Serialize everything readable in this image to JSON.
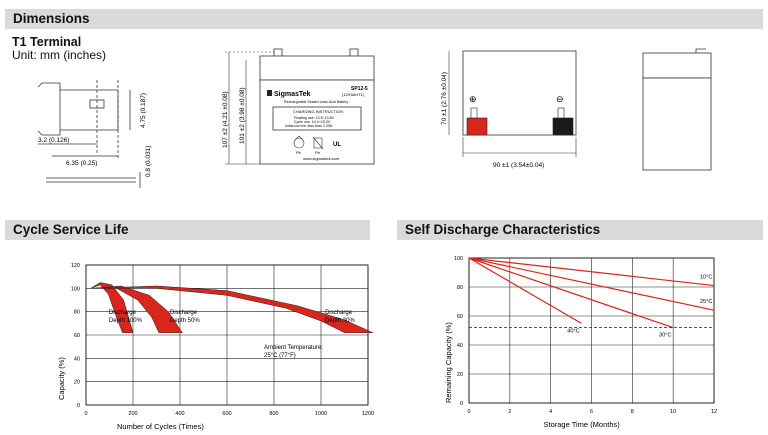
{
  "dimensions": {
    "title": "Dimensions",
    "terminal_title": "T1 Terminal",
    "unit": "Unit: mm (inches)",
    "terminal": {
      "d1": "3.2 (0.126)",
      "d2": "6.35 (0.25)",
      "d3": "4.75 (0.187)",
      "d4": "0.8 (0.031)"
    },
    "front": {
      "h_total": "107 ±2 (4.21 ±0.08)",
      "h_case": "101 ±2 (3.98 ±0.08)",
      "brand": "SigmasTek",
      "model": "SP12-5",
      "model_sub": "(12V5AHT1)",
      "subtitle": "Rechargeable Sealed Lead-Acid Battery",
      "charging_title": "CHARGING INSTRUCTION",
      "charging_1": "Floating use: 13.5~13.8V",
      "charging_2": "Cycle use: 14.4~15.0V",
      "charging_3": "Initial current: less than 2.25A",
      "cert_1": "Pb",
      "cert_2": "UL",
      "website": "www.sigmastek.com"
    },
    "side": {
      "h": "70 ±1 (2.76 ±0.04)",
      "w": "90 ±1 (3.54±0.04)",
      "pos": "⊕",
      "neg": "⊖"
    },
    "colors": {
      "positive": "#d9261c",
      "negative": "#1a1a1a"
    }
  },
  "cycle": {
    "title": "Cycle Service Life",
    "chart_data": {
      "type": "line",
      "xlabel": "Number of Cycles (Times)",
      "ylabel": "Capacity (%)",
      "xlim": [
        0,
        1200
      ],
      "ylim": [
        0,
        120
      ],
      "xticks": [
        0,
        200,
        400,
        600,
        800,
        1000,
        1200
      ],
      "yticks": [
        0,
        20,
        40,
        60,
        80,
        100,
        120
      ],
      "grid": true,
      "annotations": [
        {
          "text": "Discharge",
          "text2": "Depth 100%"
        },
        {
          "text": "Discharge",
          "text2": "Depth 50%"
        },
        {
          "text": "Ambient Temperature:",
          "text2": "25°C (77°F)"
        },
        {
          "text": "Discharge",
          "text2": "Depth 30%"
        }
      ],
      "series": [
        {
          "upper": [
            [
              20,
              100
            ],
            [
              60,
              105
            ],
            [
              110,
              103
            ],
            [
              160,
              90
            ],
            [
              200,
              62
            ]
          ],
          "lower": [
            [
              20,
              100
            ],
            [
              60,
              103
            ],
            [
              95,
              95
            ],
            [
              130,
              75
            ],
            [
              155,
              62
            ]
          ],
          "color": "#d9261c"
        },
        {
          "upper": [
            [
              20,
              100
            ],
            [
              150,
              102
            ],
            [
              270,
              94
            ],
            [
              350,
              80
            ],
            [
              410,
              62
            ]
          ],
          "lower": [
            [
              20,
              100
            ],
            [
              130,
              100
            ],
            [
              220,
              90
            ],
            [
              280,
              75
            ],
            [
              310,
              62
            ]
          ],
          "color": "#d9261c"
        },
        {
          "upper": [
            [
              20,
              100
            ],
            [
              300,
              102
            ],
            [
              600,
              98
            ],
            [
              900,
              85
            ],
            [
              1100,
              73
            ],
            [
              1220,
              62
            ]
          ],
          "lower": [
            [
              20,
              100
            ],
            [
              300,
              100
            ],
            [
              600,
              94
            ],
            [
              850,
              83
            ],
            [
              1000,
              72
            ],
            [
              1100,
              62
            ]
          ],
          "color": "#d9261c"
        }
      ]
    }
  },
  "self": {
    "title": "Self Discharge Characteristics",
    "chart_data": {
      "type": "line",
      "xlabel": "Storage Time (Months)",
      "ylabel": "Remaining Capacity (%)",
      "xlim": [
        0,
        12
      ],
      "ylim": [
        0,
        100
      ],
      "xticks": [
        0,
        2,
        4,
        6,
        8,
        10,
        12
      ],
      "yticks": [
        0,
        20,
        40,
        60,
        80,
        100
      ],
      "grid": true,
      "threshold": 52,
      "series": [
        {
          "name": "10°C",
          "x": [
            0,
            12
          ],
          "y": [
            100,
            81
          ]
        },
        {
          "name": "25°C",
          "x": [
            0,
            12
          ],
          "y": [
            100,
            64
          ]
        },
        {
          "name": "30°C",
          "x": [
            0,
            10
          ],
          "y": [
            100,
            52
          ]
        },
        {
          "name": "40°C",
          "x": [
            0,
            5.5
          ],
          "y": [
            100,
            55
          ]
        }
      ],
      "color": "#d9261c"
    }
  }
}
